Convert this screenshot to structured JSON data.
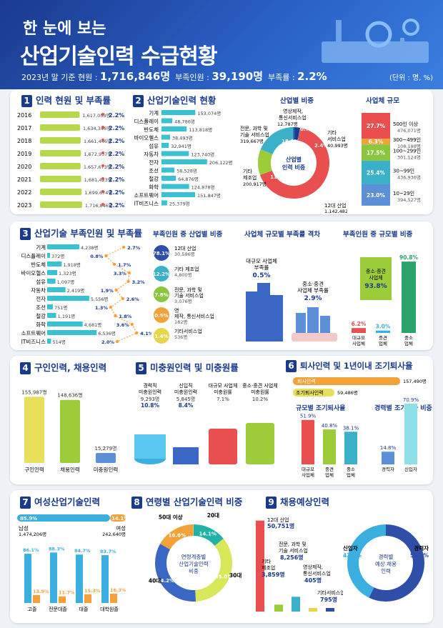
{
  "header": {
    "title1": "한 눈에 보는",
    "title2": "산업기술인력 수급현황",
    "sub_prefix": "2023년 말 기준 현원 :",
    "total": "1,716,846명",
    "short_label": "부족인원 :",
    "short": "39,190명",
    "rate_label": "부족률 :",
    "rate": "2.2%",
    "unit": "(단위 : 명, %)"
  },
  "sections": {
    "s1": {
      "num": "1",
      "title": "인력 현원 및 부족률"
    },
    "s2": {
      "num": "2",
      "title": "산업기술인력 현황"
    },
    "s2a": "산업별 비중",
    "s2b": "사업체 규모",
    "s3": {
      "num": "3",
      "title": "산업기술 부족인원 및 부족률"
    },
    "s3a": "부족인원 중 산업별 비중",
    "s3b": "사업체 규모별 부족률 격차",
    "s3c": "부족인원 중 규모별 비중",
    "s4": {
      "num": "4",
      "title": "구인인력, 채용인력"
    },
    "s5": {
      "num": "5",
      "title": "미충원인력 및 미충원률"
    },
    "s6": {
      "num": "6",
      "title": "퇴사인력 및 1년이내 조기퇴사율"
    },
    "s6a": "규모별 조기퇴사율",
    "s6b": "경력별 조기퇴사 비중",
    "s7": {
      "num": "7",
      "title": "여성산업기술인력"
    },
    "s8": {
      "num": "8",
      "title": "연령별 산업기술인력 비중"
    },
    "s9": {
      "num": "9",
      "title": "채용예상인력"
    }
  },
  "chart_data": [
    {
      "id": "s1",
      "type": "bar",
      "categories": [
        "2016",
        "2017",
        "2018",
        "2019",
        "2020",
        "2021",
        "2022",
        "2023"
      ],
      "values": [
        1617053,
        1634346,
        1661446,
        1672937,
        1657673,
        1681423,
        1699674,
        1716846
      ],
      "labels": [
        "1,617,053명",
        "1,634,346명",
        "1,661,446명",
        "1,672,937명",
        "1,657,673명",
        "1,681,423명",
        "1,699,674명",
        "1,716,846명"
      ],
      "rates": [
        2.2,
        2.2,
        2.2,
        2.2,
        2.2,
        2.2,
        2.2,
        2.2
      ]
    },
    {
      "id": "s2",
      "type": "bar",
      "categories": [
        "기계",
        "디스플레이",
        "반도체",
        "바이오헬스",
        "섬유",
        "자동차",
        "전자",
        "조선",
        "철강",
        "화학",
        "소프트웨어",
        "IT비즈니스"
      ],
      "values": [
        153074,
        48786,
        113818,
        38493,
        32941,
        123740,
        206122,
        58528,
        64876,
        124878,
        151847,
        25379
      ],
      "labels": [
        "153,074명",
        "48,786명",
        "113,818명",
        "38,493명",
        "32,941명",
        "123,740명",
        "206,122명",
        "58,528명",
        "64,876명",
        "124,878명",
        "151,847명",
        "25,379명"
      ]
    },
    {
      "id": "s2a",
      "type": "pie",
      "slices": [
        {
          "name": "12대 산업",
          "pct": 66.5,
          "count": "1,142,482명",
          "color": "#e94f4f"
        },
        {
          "name": "기타 제조업",
          "pct": 11.7,
          "count": "200,917명",
          "color": "#9ccc3a"
        },
        {
          "name": "전문, 과학 및 기술 서비스업",
          "pct": 18.6,
          "count": "319,667명",
          "color": "#3bb0c9"
        },
        {
          "name": "영상제작, 통신서비스업",
          "pct": 0.7,
          "count": "12,787명",
          "color": "#2e4ea8"
        },
        {
          "name": "기타 서비스업",
          "pct": 2.4,
          "count": "40,993명",
          "color": "#1a3a8e"
        }
      ],
      "center": "산업별 인력 비중"
    },
    {
      "id": "s2b",
      "type": "bar",
      "categories": [
        "500인 이상",
        "300~499인",
        "100~299인",
        "30~99인",
        "10~29인"
      ],
      "values": [
        27.7,
        6.3,
        17.5,
        25.4,
        23.0
      ],
      "counts": [
        "476,071명",
        "108,188명",
        "301,124명",
        "436,936명",
        "394,527명"
      ],
      "colors": [
        "#e94f4f",
        "#f3a23a",
        "#8cc63f",
        "#3bb0c9",
        "#5b8fd6"
      ]
    },
    {
      "id": "s3",
      "type": "bar",
      "categories": [
        "기계",
        "디스플레이",
        "반도체",
        "바이오헬스",
        "섬유",
        "자동차",
        "전자",
        "조선",
        "철강",
        "화학",
        "소프트웨어",
        "IT비즈니스"
      ],
      "values": [
        4238,
        372,
        1918,
        1323,
        1097,
        2419,
        5556,
        751,
        1191,
        4681,
        6536,
        514
      ],
      "labels": [
        "4,238명",
        "372명",
        "1,918명",
        "1,323명",
        "1,097명",
        "2,419명",
        "5,556명",
        "751명",
        "1,191명",
        "4,681명",
        "6,536명",
        "514명"
      ],
      "rates": [
        2.7,
        0.8,
        1.7,
        3.3,
        3.2,
        1.9,
        2.6,
        1.3,
        1.8,
        3.6,
        4.1,
        2.0
      ]
    },
    {
      "id": "s3a",
      "type": "pie",
      "items": [
        {
          "pct": "78.1%",
          "name": "12대 산업",
          "count": "30,596명"
        },
        {
          "pct": "12.2%",
          "name": "기타 제조업",
          "count": "4,800명"
        },
        {
          "pct": "7.8%",
          "name": "전문, 과학 및 기술 서비스업",
          "count": "3,076명"
        },
        {
          "pct": "0.5%",
          "name": "영상제작, 통신서비스업",
          "count": "182명"
        },
        {
          "pct": "1.4%",
          "name": "기타서비스업",
          "count": "536명"
        }
      ]
    },
    {
      "id": "s3b",
      "type": "bar",
      "categories": [
        "대규모 사업체 부족률",
        "중소·중견 사업체 부족률"
      ],
      "values": [
        0.5,
        2.9
      ],
      "labels": [
        "0.5%",
        "2.9%"
      ]
    },
    {
      "id": "s3c",
      "type": "bar",
      "categories": [
        "대규모 사업체",
        "중견 사업체",
        "중소 사업체"
      ],
      "values": [
        6.2,
        3.0,
        90.8
      ],
      "labels": [
        "6.2%",
        "3.0%",
        "90.8%"
      ],
      "note_title": "중소·중견 사업체",
      "note_value": "93.8%"
    },
    {
      "id": "s4",
      "type": "bar",
      "categories": [
        "구인인력",
        "채용인력",
        "미충원인력"
      ],
      "values": [
        155987,
        148636,
        15279
      ],
      "labels": [
        "155,987명",
        "148,636명",
        "15,279명"
      ]
    },
    {
      "id": "s5",
      "type": "bar",
      "categories": [
        "경력직 미충원인력",
        "신입직 미충원인력",
        "대규모 사업체 미충원률",
        "중소·중견 사업체 미충원률"
      ],
      "labels": [
        "9,293명",
        "5,845명",
        "7.1%",
        "10.2%"
      ],
      "pcts": [
        "10.8%",
        "8.4%",
        "",
        ""
      ]
    },
    {
      "id": "s6",
      "type": "bar",
      "categories": [
        "퇴사인력",
        "조기퇴사인력"
      ],
      "values": [
        157490,
        59486
      ],
      "labels": [
        "157,490명",
        "59,486명"
      ]
    },
    {
      "id": "s6a",
      "type": "bar",
      "categories": [
        "대규모 사업체",
        "중견 사업체",
        "중소 사업체"
      ],
      "values": [
        51.9,
        40.8,
        38.1
      ],
      "labels": [
        "51.9%",
        "40.8%",
        "38.1%"
      ]
    },
    {
      "id": "s6b",
      "type": "bar",
      "categories": [
        "경력자",
        "신입자"
      ],
      "values": [
        14.8,
        70.9
      ],
      "labels": [
        "14.8%",
        "70.9%"
      ]
    },
    {
      "id": "s7",
      "type": "bar",
      "split": {
        "male_pct": "85.9%",
        "female_pct": "14.1%",
        "male_label": "남성",
        "male_count": "1,474,206명",
        "female_label": "여성",
        "female_count": "242,640명"
      },
      "categories": [
        "고졸",
        "전문대졸",
        "대졸",
        "대학원졸"
      ],
      "series": [
        {
          "name": "남성",
          "values": [
            86.1,
            88.3,
            84.7,
            83.7
          ]
        },
        {
          "name": "여성",
          "values": [
            13.9,
            11.7,
            15.3,
            16.3
          ]
        }
      ]
    },
    {
      "id": "s8",
      "type": "pie",
      "slices": [
        {
          "name": "20대",
          "pct": 14.1,
          "color": "#1fb3a8"
        },
        {
          "name": "30대",
          "pct": 35.0,
          "color": "#d8e85a"
        },
        {
          "name": "40대",
          "pct": 34.2,
          "color": "#3a66c4"
        },
        {
          "name": "50대 이상",
          "pct": 16.6,
          "color": "#f3a23a"
        }
      ],
      "center": "연령계층별 산업기술인력 비중"
    },
    {
      "id": "s9",
      "type": "bar",
      "categories": [
        "12대 산업",
        "기타 제조업",
        "전문, 과학 및 기술 서비스업",
        "영상제작, 통신서비스업",
        "기타서비스업"
      ],
      "values": [
        50751,
        3859,
        8256,
        405,
        795
      ],
      "labels": [
        "50,751명",
        "3,859명",
        "8,256명",
        "405명",
        "795명"
      ]
    },
    {
      "id": "s9b",
      "type": "pie",
      "slices": [
        {
          "name": "신입자",
          "pct": 42.8,
          "color": "#3bb0e0"
        },
        {
          "name": "경력자",
          "pct": 57.2,
          "color": "#2e4ea8"
        }
      ],
      "center": "경력별 예상 채용 인력"
    }
  ]
}
